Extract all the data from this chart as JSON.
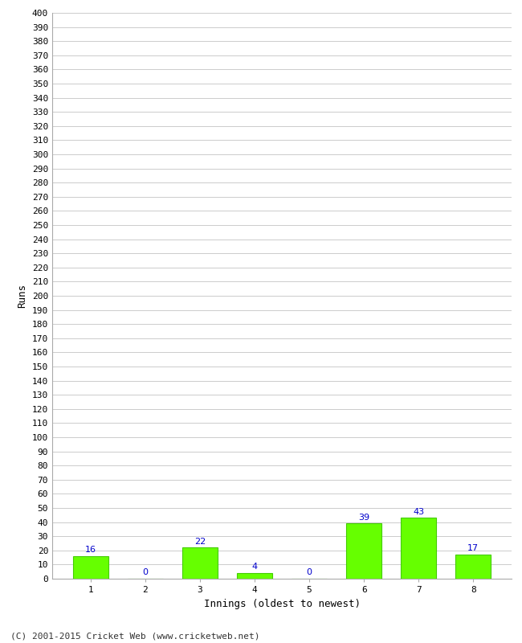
{
  "categories": [
    "1",
    "2",
    "3",
    "4",
    "5",
    "6",
    "7",
    "8"
  ],
  "values": [
    16,
    0,
    22,
    4,
    0,
    39,
    43,
    17
  ],
  "bar_color": "#66ff00",
  "bar_edge_color": "#44cc00",
  "label_color": "#0000cc",
  "xlabel": "Innings (oldest to newest)",
  "ylabel": "Runs",
  "ylim": [
    0,
    400
  ],
  "ytick_step": 10,
  "footer": "(C) 2001-2015 Cricket Web (www.cricketweb.net)",
  "background_color": "#ffffff",
  "grid_color": "#cccccc",
  "label_fontsize": 8,
  "axis_fontsize": 8,
  "footer_fontsize": 8
}
